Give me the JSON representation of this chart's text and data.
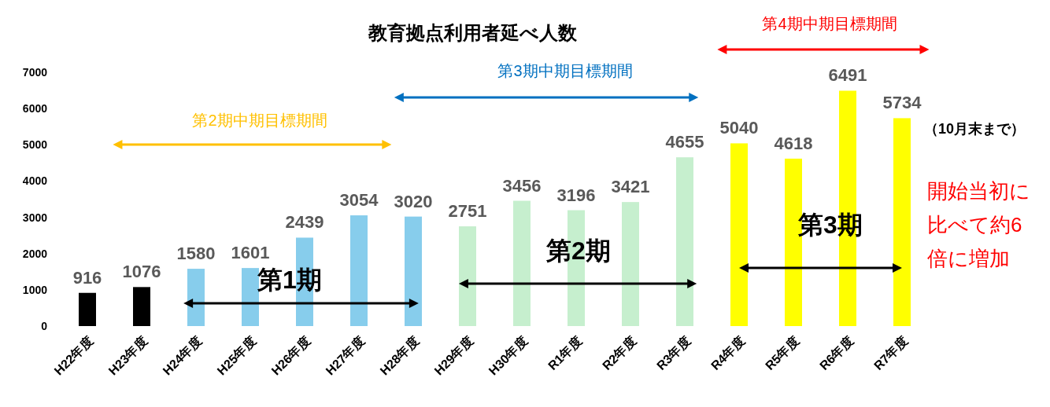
{
  "chart_data": {
    "type": "bar",
    "title": "教育拠点利用者延べ人数",
    "categories": [
      "H22年度",
      "H23年度",
      "H24年度",
      "H25年度",
      "H26年度",
      "H27年度",
      "H28年度",
      "H29年度",
      "H30年度",
      "R1年度",
      "R2年度",
      "R3年度",
      "R4年度",
      "R5年度",
      "R6年度",
      "R7年度"
    ],
    "values": [
      916,
      1076,
      1580,
      1601,
      2439,
      3054,
      3020,
      2751,
      3456,
      3196,
      3421,
      4655,
      5040,
      4618,
      6491,
      5734
    ],
    "colors": [
      "#000000",
      "#000000",
      "#87cdec",
      "#87cdec",
      "#87cdec",
      "#87cdec",
      "#87cdec",
      "#c6efce",
      "#c6efce",
      "#c6efce",
      "#c6efce",
      "#c6efce",
      "#ffff00",
      "#ffff00",
      "#ffff00",
      "#ffff00"
    ],
    "ylim": [
      0,
      7000
    ],
    "yticks": [
      0,
      1000,
      2000,
      3000,
      4000,
      5000,
      6000,
      7000
    ],
    "data_labels": true,
    "grid": false,
    "annotations": [
      "第2期中期目標期間",
      "第3期中期目標期間",
      "第4期中期目標期間",
      "第1期",
      "第2期",
      "第3期",
      "（10月末まで）",
      "開始当初に比べて約6倍に増加"
    ]
  }
}
